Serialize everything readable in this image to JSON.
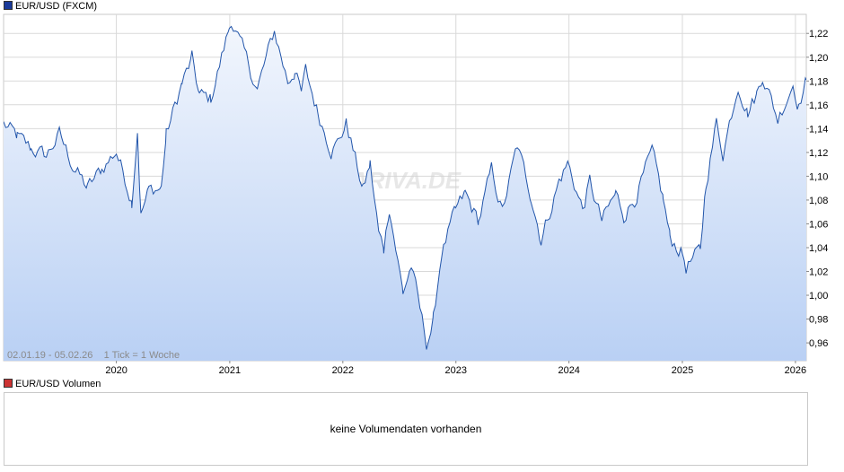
{
  "price_legend": {
    "label": "EUR/USD (FXCM)",
    "color": "#1a3a9a"
  },
  "volume_legend": {
    "label": "EUR/USD Volumen",
    "color": "#cc3333"
  },
  "volume_panel": {
    "message": "keine Volumendaten vorhanden"
  },
  "watermark": "ARIVA.DE",
  "range_note": "02.01.19 - 05.02.26    1 Tick = 1 Woche",
  "colors": {
    "line": "#2255aa",
    "fill_top": "#f2f6fd",
    "fill_bottom": "#b9d0f4",
    "grid": "#d9d9d9"
  },
  "chart_data": {
    "type": "area",
    "title": "EUR/USD (FXCM)",
    "xlabel": "",
    "ylabel": "",
    "x_range": [
      "2019-01-02",
      "2026-02-05"
    ],
    "ylim": [
      0.945,
      1.236
    ],
    "y_ticks": [
      0.96,
      0.98,
      1.0,
      1.02,
      1.04,
      1.06,
      1.08,
      1.1,
      1.12,
      1.14,
      1.16,
      1.18,
      1.2,
      1.22
    ],
    "y_tick_labels": [
      "0,96",
      "0,98",
      "1,00",
      "1,02",
      "1,04",
      "1,06",
      "1,08",
      "1,10",
      "1,12",
      "1,14",
      "1,16",
      "1,18",
      "1,20",
      "1,22"
    ],
    "x_ticks": [
      "2020-01-01",
      "2021-01-01",
      "2022-01-01",
      "2023-01-01",
      "2024-01-01",
      "2025-01-01",
      "2026-01-01"
    ],
    "x_tick_labels": [
      "2020",
      "2021",
      "2022",
      "2023",
      "2024",
      "2025",
      "2026"
    ],
    "grid": true,
    "legend": "top-left",
    "series": [
      {
        "name": "EUR/USD (FXCM)",
        "x": [
          "2019-01-02",
          "2019-02-15",
          "2019-04-01",
          "2019-05-20",
          "2019-07-01",
          "2019-08-15",
          "2019-09-30",
          "2019-11-15",
          "2020-01-01",
          "2020-02-20",
          "2020-03-09",
          "2020-03-20",
          "2020-04-15",
          "2020-05-25",
          "2020-06-10",
          "2020-07-31",
          "2020-09-01",
          "2020-09-25",
          "2020-11-01",
          "2020-12-31",
          "2021-01-06",
          "2021-03-31",
          "2021-05-25",
          "2021-07-07",
          "2021-07-30",
          "2021-08-20",
          "2021-09-03",
          "2021-10-12",
          "2021-11-24",
          "2021-12-15",
          "2022-01-13",
          "2022-03-07",
          "2022-03-30",
          "2022-04-28",
          "2022-05-13",
          "2022-05-31",
          "2022-07-14",
          "2022-08-10",
          "2022-09-28",
          "2022-10-20",
          "2022-11-15",
          "2022-12-31",
          "2023-01-31",
          "2023-03-15",
          "2023-04-26",
          "2023-05-31",
          "2023-07-18",
          "2023-08-31",
          "2023-10-03",
          "2023-11-30",
          "2023-12-28",
          "2024-02-14",
          "2024-03-08",
          "2024-04-16",
          "2024-05-31",
          "2024-06-26",
          "2024-07-31",
          "2024-09-25",
          "2024-10-31",
          "2024-11-22",
          "2024-12-31",
          "2025-01-13",
          "2025-02-28",
          "2025-03-18",
          "2025-04-21",
          "2025-05-12",
          "2025-06-30",
          "2025-07-31",
          "2025-08-29",
          "2025-09-17",
          "2025-11-05",
          "2025-12-24",
          "2026-01-12",
          "2026-02-05"
        ],
        "values": [
          1.144,
          1.133,
          1.123,
          1.117,
          1.135,
          1.108,
          1.09,
          1.106,
          1.121,
          1.08,
          1.14,
          1.068,
          1.088,
          1.09,
          1.135,
          1.178,
          1.198,
          1.168,
          1.165,
          1.225,
          1.232,
          1.173,
          1.222,
          1.18,
          1.189,
          1.169,
          1.188,
          1.154,
          1.123,
          1.128,
          1.145,
          1.088,
          1.11,
          1.05,
          1.04,
          1.075,
          1.002,
          1.025,
          0.96,
          0.978,
          1.035,
          1.07,
          1.085,
          1.062,
          1.105,
          1.07,
          1.125,
          1.085,
          1.047,
          1.096,
          1.111,
          1.072,
          1.095,
          1.062,
          1.085,
          1.068,
          1.081,
          1.119,
          1.081,
          1.048,
          1.036,
          1.024,
          1.037,
          1.094,
          1.145,
          1.12,
          1.178,
          1.154,
          1.169,
          1.186,
          1.148,
          1.178,
          1.16,
          1.181
        ]
      }
    ]
  }
}
